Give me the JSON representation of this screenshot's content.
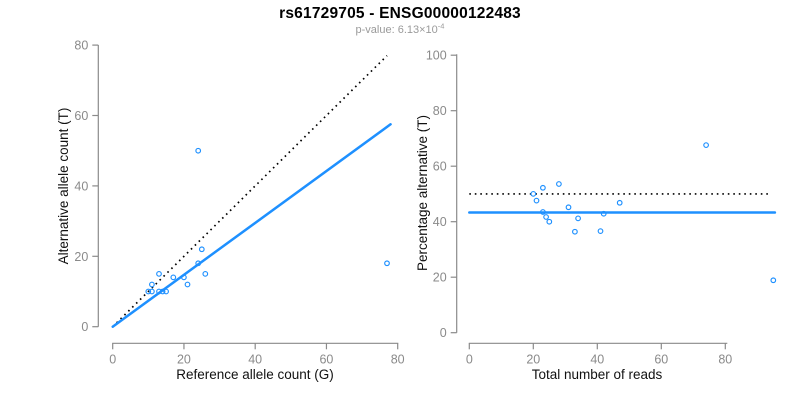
{
  "title": "rs61729705 - ENSG00000122483",
  "subtitle": {
    "label": "p-value: ",
    "value": "6.13×10",
    "exponent": "-4"
  },
  "colors": {
    "accent_blue": "#1E90FF",
    "axis_gray": "#8a8a8a",
    "tick_label_gray": "#8a8a8a",
    "axis_title_black": "#111111",
    "dotted_black": "#000000",
    "background": "#ffffff"
  },
  "chart_data": [
    {
      "type": "scatter",
      "panel": "left",
      "xlabel": "Reference allele count (G)",
      "ylabel": "Alternative allele count (T)",
      "xlim": [
        0,
        80
      ],
      "ylim": [
        0,
        80
      ],
      "xticks": [
        0,
        20,
        40,
        60,
        80
      ],
      "yticks": [
        0,
        20,
        40,
        60,
        80
      ],
      "grid": false,
      "legend": "none",
      "points": [
        [
          10,
          10
        ],
        [
          11,
          10
        ],
        [
          11,
          12
        ],
        [
          13,
          10
        ],
        [
          13,
          15
        ],
        [
          14,
          10
        ],
        [
          15,
          10
        ],
        [
          17,
          14
        ],
        [
          20,
          14
        ],
        [
          21,
          12
        ],
        [
          24,
          18
        ],
        [
          24,
          50
        ],
        [
          25,
          22
        ],
        [
          26,
          15
        ],
        [
          77,
          18
        ]
      ],
      "lines": [
        {
          "name": "identity-line",
          "style": "dotted",
          "x1": 0,
          "y1": 0,
          "x2": 77,
          "y2": 77
        },
        {
          "name": "fit-line",
          "style": "solid",
          "x1": 0,
          "y1": 0,
          "x2": 78,
          "y2": 57.5
        }
      ]
    },
    {
      "type": "scatter",
      "panel": "right",
      "xlabel": "Total number of reads",
      "ylabel": "Percentage alternative (T)",
      "xlim": [
        0,
        95
      ],
      "ylim": [
        0,
        100
      ],
      "xticks": [
        0,
        20,
        40,
        60,
        80
      ],
      "yticks": [
        0,
        20,
        40,
        60,
        80,
        100
      ],
      "grid": false,
      "legend": "none",
      "points": [
        [
          20,
          50
        ],
        [
          21,
          47.6
        ],
        [
          23,
          52.2
        ],
        [
          23,
          43.5
        ],
        [
          28,
          53.6
        ],
        [
          24,
          41.7
        ],
        [
          25,
          40
        ],
        [
          31,
          45.2
        ],
        [
          34,
          41.2
        ],
        [
          33,
          36.4
        ],
        [
          42,
          42.9
        ],
        [
          74,
          67.6
        ],
        [
          47,
          46.8
        ],
        [
          41,
          36.6
        ],
        [
          95,
          18.9
        ]
      ],
      "lines": [
        {
          "name": "null-50pct-line",
          "style": "dotted",
          "x1": 0,
          "y1": 50,
          "x2": 93.5,
          "y2": 50
        },
        {
          "name": "mean-pct-line",
          "style": "solid",
          "x1": 0,
          "y1": 43.3,
          "x2": 95.5,
          "y2": 43.3
        }
      ]
    }
  ]
}
